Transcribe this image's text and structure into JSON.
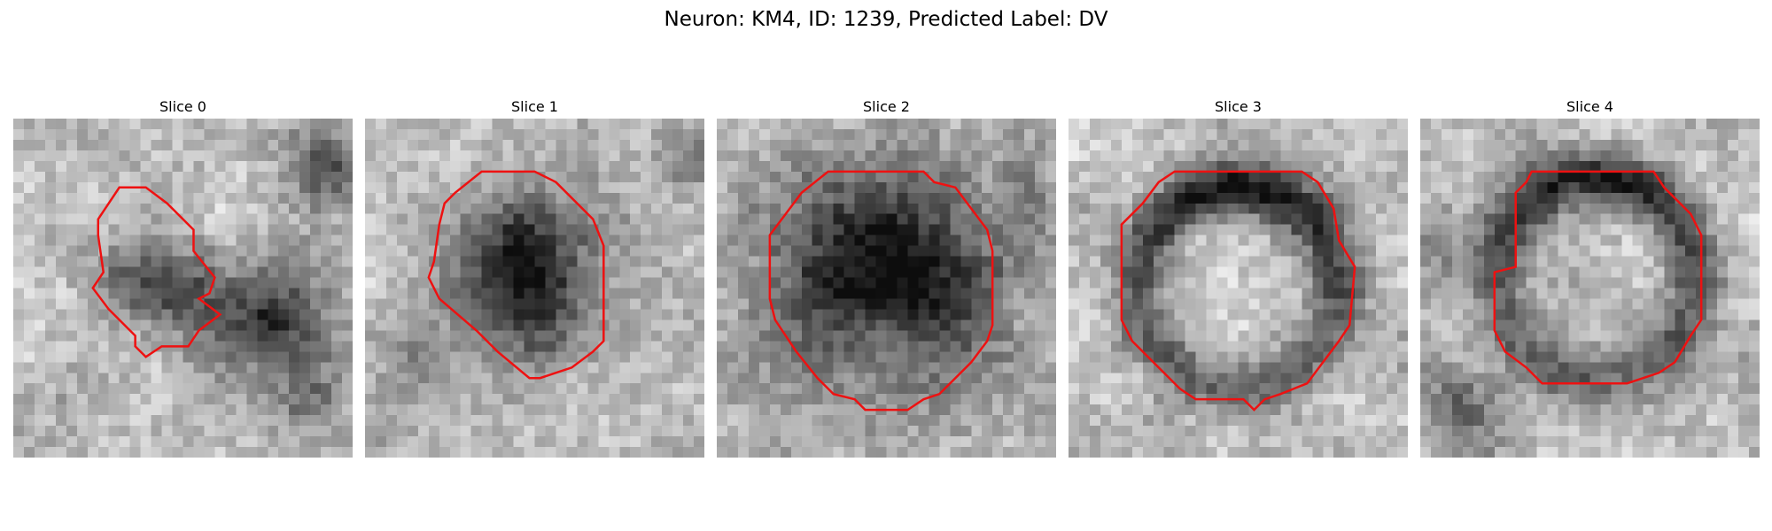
{
  "figure": {
    "title": "Neuron: KM4, ID: 1239, Predicted Label: DV"
  },
  "colormap": "gray",
  "contour_color": "#ee1111",
  "slices": [
    {
      "title": "Slice 0"
    },
    {
      "title": "Slice 1"
    },
    {
      "title": "Slice 2"
    },
    {
      "title": "Slice 3"
    },
    {
      "title": "Slice 4"
    }
  ]
}
